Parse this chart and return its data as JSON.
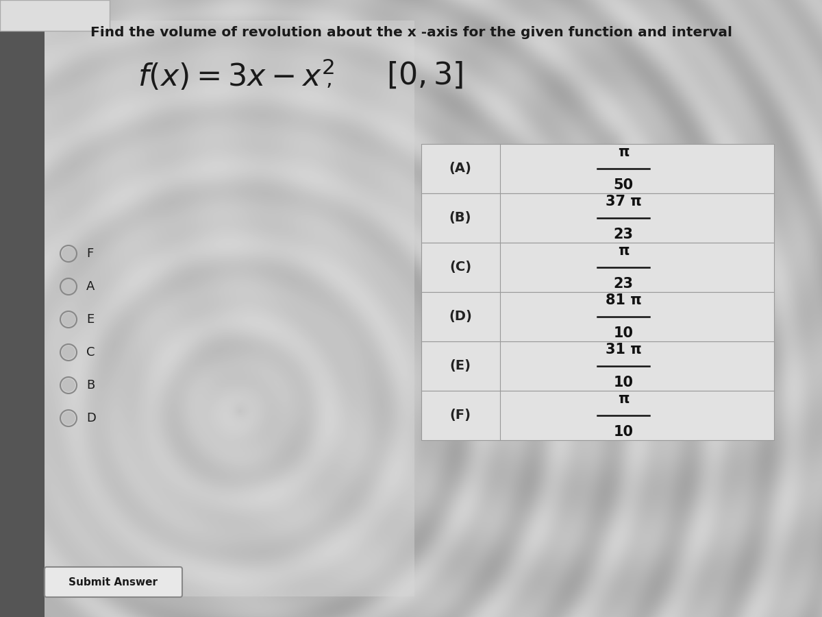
{
  "title": "Find the volume of revolution about the x -axis for the given function and interval",
  "choices": [
    {
      "label": "(A)",
      "numerator": "π",
      "denominator": "50"
    },
    {
      "label": "(B)",
      "numerator": "37 π",
      "denominator": "23"
    },
    {
      "label": "(C)",
      "numerator": "π",
      "denominator": "23"
    },
    {
      "label": "(D)",
      "numerator": "81 π",
      "denominator": "10"
    },
    {
      "label": "(E)",
      "numerator": "31 π",
      "denominator": "10"
    },
    {
      "label": "(F)",
      "numerator": "π",
      "denominator": "10"
    }
  ],
  "radio_options": [
    "F",
    "A",
    "E",
    "C",
    "B",
    "D"
  ],
  "submit_text": "Submit Answer",
  "title_color": "#1a1a1a",
  "text_color": "#1a1a1a",
  "table_label_color": "#222222",
  "table_value_color": "#111111"
}
